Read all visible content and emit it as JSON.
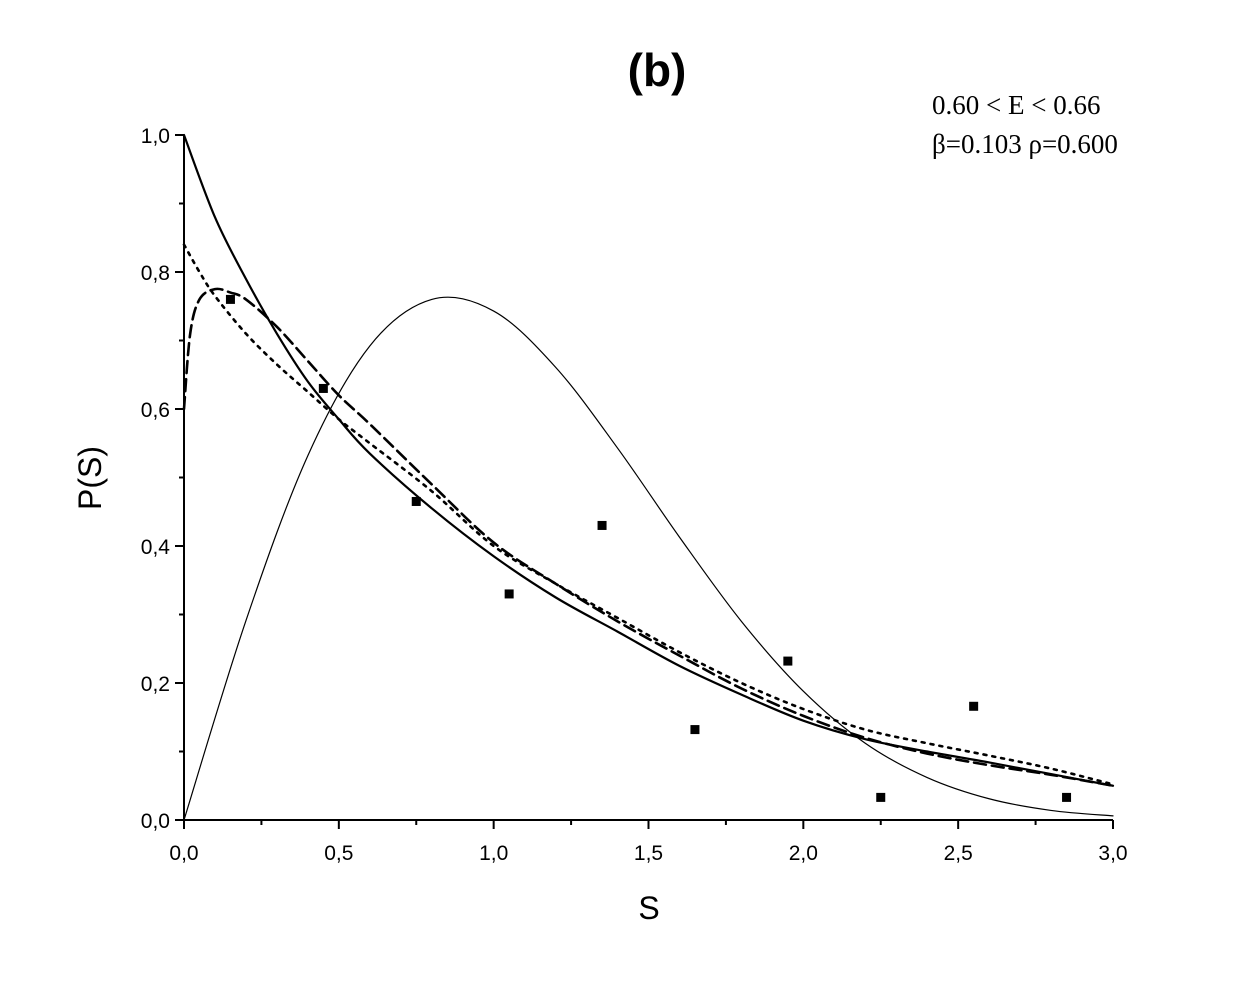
{
  "chart_data": {
    "type": "scatter",
    "title": "(b)",
    "xlabel": "S",
    "ylabel": "P(S)",
    "xlim": [
      0,
      3.0
    ],
    "ylim": [
      0,
      1.0
    ],
    "x_ticks": [
      "0,0",
      "0,5",
      "1,0",
      "1,5",
      "2,0",
      "2,5",
      "3,0"
    ],
    "y_ticks": [
      "0,0",
      "0,2",
      "0,4",
      "0,6",
      "0,8",
      "1,0"
    ],
    "annotations": [
      "0.60 < E < 0.66",
      "β=0.103  ρ=0.600"
    ],
    "legend": "none",
    "grid": false,
    "series": [
      {
        "style": "markers",
        "x": [
          0.15,
          0.45,
          0.75,
          1.05,
          1.35,
          1.65,
          1.95,
          2.25,
          2.55,
          2.85
        ],
        "y": [
          0.76,
          0.63,
          0.465,
          0.33,
          0.43,
          0.132,
          0.232,
          0.033,
          0.166,
          0.033
        ]
      },
      {
        "style": "solid",
        "x": [
          0,
          0.1,
          0.2,
          0.3,
          0.4,
          0.5,
          0.6,
          0.8,
          1.0,
          1.2,
          1.4,
          1.6,
          1.8,
          2.0,
          2.2,
          2.4,
          2.6,
          2.8,
          3.0
        ],
        "y": [
          1.0,
          0.88,
          0.79,
          0.71,
          0.64,
          0.585,
          0.535,
          0.455,
          0.385,
          0.325,
          0.275,
          0.225,
          0.183,
          0.145,
          0.118,
          0.1,
          0.084,
          0.067,
          0.05
        ]
      },
      {
        "style": "thin",
        "x": [
          0,
          0.2,
          0.4,
          0.6,
          0.8,
          1.0,
          1.2,
          1.4,
          1.6,
          1.8,
          2.0,
          2.2,
          2.4,
          2.6,
          2.8,
          3.0
        ],
        "y": [
          0,
          0.291,
          0.532,
          0.692,
          0.76,
          0.743,
          0.661,
          0.543,
          0.413,
          0.29,
          0.188,
          0.112,
          0.062,
          0.031,
          0.014,
          0.006
        ]
      },
      {
        "style": "dashed",
        "x": [
          0,
          0.02,
          0.05,
          0.1,
          0.15,
          0.2,
          0.3,
          0.4,
          0.5,
          0.6,
          0.8,
          1.0,
          1.2,
          1.4,
          1.6,
          1.8,
          2.0,
          2.2,
          2.4,
          2.6,
          2.8,
          3.0
        ],
        "y": [
          0.6,
          0.71,
          0.76,
          0.775,
          0.77,
          0.76,
          0.72,
          0.67,
          0.62,
          0.578,
          0.49,
          0.405,
          0.345,
          0.29,
          0.24,
          0.192,
          0.152,
          0.12,
          0.097,
          0.08,
          0.066,
          0.05
        ]
      },
      {
        "style": "dotted",
        "x": [
          0,
          0.05,
          0.1,
          0.2,
          0.3,
          0.4,
          0.5,
          0.6,
          0.8,
          1.0,
          1.2,
          1.4,
          1.6,
          1.8,
          2.0,
          2.2,
          2.4,
          2.6,
          2.8,
          3.0
        ],
        "y": [
          0.84,
          0.8,
          0.765,
          0.71,
          0.665,
          0.625,
          0.585,
          0.55,
          0.48,
          0.4,
          0.345,
          0.295,
          0.245,
          0.2,
          0.162,
          0.132,
          0.112,
          0.094,
          0.075,
          0.052
        ]
      }
    ]
  }
}
